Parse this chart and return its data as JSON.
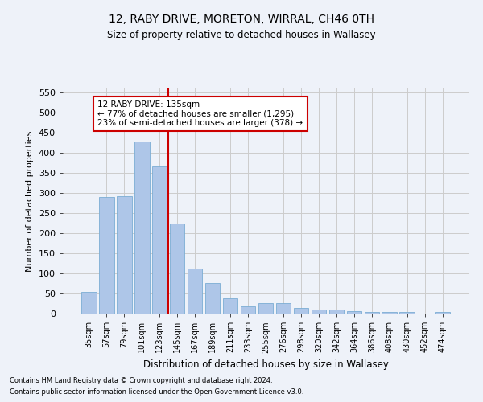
{
  "title_line1": "12, RABY DRIVE, MORETON, WIRRAL, CH46 0TH",
  "title_line2": "Size of property relative to detached houses in Wallasey",
  "xlabel": "Distribution of detached houses by size in Wallasey",
  "ylabel": "Number of detached properties",
  "footer_line1": "Contains HM Land Registry data © Crown copyright and database right 2024.",
  "footer_line2": "Contains public sector information licensed under the Open Government Licence v3.0.",
  "bar_labels": [
    "35sqm",
    "57sqm",
    "79sqm",
    "101sqm",
    "123sqm",
    "145sqm",
    "167sqm",
    "189sqm",
    "211sqm",
    "233sqm",
    "255sqm",
    "276sqm",
    "298sqm",
    "320sqm",
    "342sqm",
    "364sqm",
    "386sqm",
    "408sqm",
    "430sqm",
    "452sqm",
    "474sqm"
  ],
  "bar_values": [
    55,
    290,
    293,
    428,
    367,
    225,
    113,
    76,
    38,
    18,
    27,
    27,
    15,
    10,
    10,
    7,
    5,
    5,
    5,
    0,
    5
  ],
  "bar_color": "#aec6e8",
  "bar_edgecolor": "#7badd4",
  "grid_color": "#cccccc",
  "background_color": "#eef2f9",
  "vline_x": 4.5,
  "vline_color": "#cc0000",
  "annotation_text": "12 RABY DRIVE: 135sqm\n← 77% of detached houses are smaller (1,295)\n23% of semi-detached houses are larger (378) →",
  "annotation_box_color": "#ffffff",
  "annotation_box_edgecolor": "#cc0000",
  "ylim": [
    0,
    560
  ],
  "yticks": [
    0,
    50,
    100,
    150,
    200,
    250,
    300,
    350,
    400,
    450,
    500,
    550
  ]
}
